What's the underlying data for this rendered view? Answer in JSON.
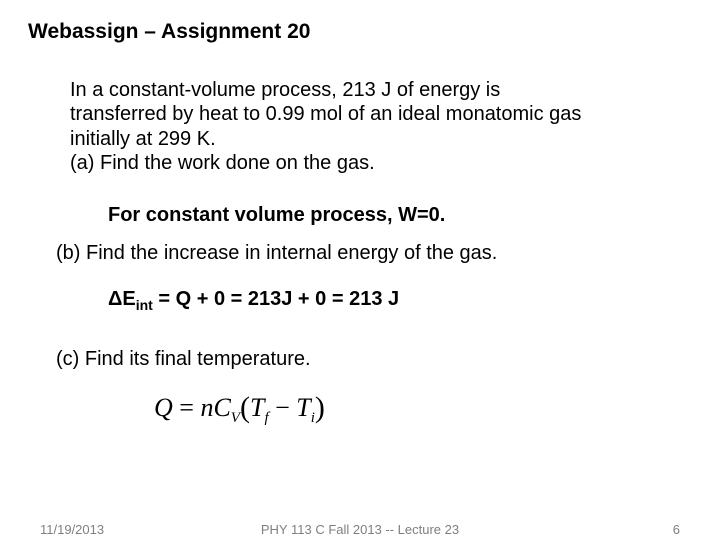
{
  "title": "Webassign – Assignment 20",
  "problem": {
    "line1": "In a constant-volume process, 213 J of energy is",
    "line2": "transferred by heat to 0.99 mol of an ideal monatomic gas",
    "line3": "initially at 299 K.",
    "line4": "(a) Find the work done on the gas."
  },
  "answer_a": "For constant volume process, W=0.",
  "part_b": "(b) Find the increase in internal energy of the gas.",
  "answer_b": {
    "prefix": "ΔE",
    "sub": "int",
    "rest": " = Q + 0 = 213J + 0 = 213 J"
  },
  "part_c": "(c) Find its final temperature.",
  "equation": {
    "Q": "Q",
    "eq": " = ",
    "n": "n",
    "C": "C",
    "V": "V",
    "lp": "(",
    "Tf_T": "T",
    "Tf_f": "f",
    "minus": " − ",
    "Ti_T": "T",
    "Ti_i": "i",
    "rp": ")"
  },
  "footer": {
    "date": "11/19/2013",
    "center": "PHY 113 C  Fall 2013 -- Lecture 23",
    "page": "6"
  }
}
